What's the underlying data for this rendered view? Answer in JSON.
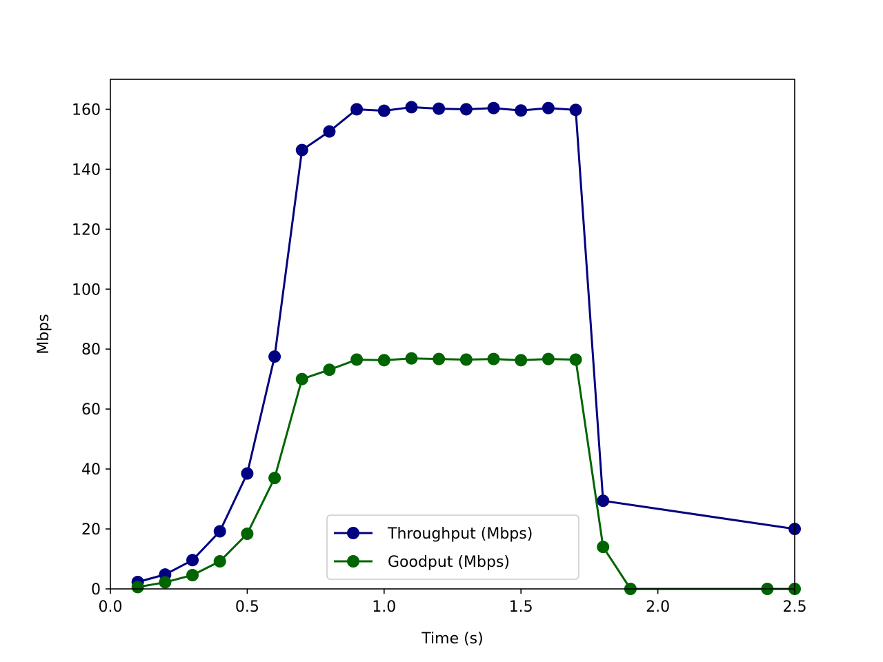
{
  "chart_data": {
    "type": "line",
    "title": "",
    "xlabel": "Time (s)",
    "ylabel": "Mbps",
    "xlim": [
      0.0,
      2.5
    ],
    "ylim": [
      0,
      170
    ],
    "xticks": [
      0.0,
      0.5,
      1.0,
      1.5,
      2.0,
      2.5
    ],
    "xtick_labels": [
      "0.0",
      "0.5",
      "1.0",
      "1.5",
      "2.0",
      "2.5"
    ],
    "yticks": [
      0,
      20,
      40,
      60,
      80,
      100,
      120,
      140,
      160
    ],
    "ytick_labels": [
      "0",
      "20",
      "40",
      "60",
      "80",
      "100",
      "120",
      "140",
      "160"
    ],
    "grid": false,
    "legend_position": "bottom-center",
    "series": [
      {
        "name": "Throughput (Mbps)",
        "color": "#000080",
        "marker": "circle",
        "x": [
          0.1,
          0.2,
          0.3,
          0.4,
          0.5,
          0.6,
          0.7,
          0.8,
          0.9,
          1.0,
          1.1,
          1.2,
          1.3,
          1.4,
          1.5,
          1.6,
          1.7,
          1.8,
          2.5
        ],
        "y": [
          2.3,
          4.8,
          9.6,
          19.2,
          38.5,
          77.5,
          146.4,
          152.6,
          160.0,
          159.5,
          160.7,
          160.2,
          160.0,
          160.4,
          159.6,
          160.4,
          159.8,
          29.4,
          20.0
        ]
      },
      {
        "name": "Goodput (Mbps)",
        "color": "#006400",
        "marker": "circle",
        "x": [
          0.1,
          0.2,
          0.3,
          0.4,
          0.5,
          0.6,
          0.7,
          0.8,
          0.9,
          1.0,
          1.1,
          1.2,
          1.3,
          1.4,
          1.5,
          1.6,
          1.7,
          1.8,
          1.9,
          2.4,
          2.5
        ],
        "y": [
          0.6,
          2.2,
          4.6,
          9.2,
          18.4,
          37.0,
          70.0,
          73.1,
          76.5,
          76.3,
          76.9,
          76.7,
          76.5,
          76.7,
          76.3,
          76.7,
          76.5,
          14.0,
          0.0,
          0.0,
          0.0
        ]
      }
    ]
  }
}
